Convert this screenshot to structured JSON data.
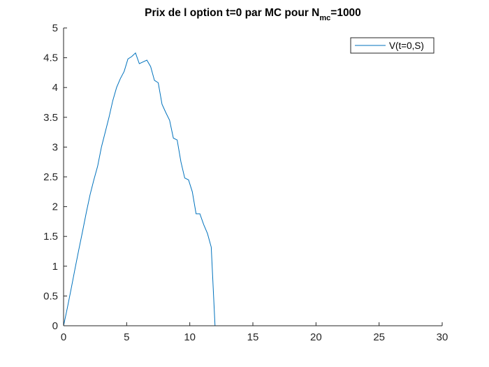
{
  "chart_data": {
    "type": "line",
    "title": {
      "main": "Prix de l option t=0 par MC pour N",
      "subscript": "mc",
      "suffix": "=1000"
    },
    "xlabel": "",
    "ylabel": "",
    "xlim": [
      0,
      30
    ],
    "ylim": [
      0,
      5
    ],
    "xticks": [
      0,
      5,
      10,
      15,
      20,
      25,
      30
    ],
    "yticks": [
      0,
      0.5,
      1,
      1.5,
      2,
      2.5,
      3,
      3.5,
      4,
      4.5,
      5
    ],
    "xtick_labels": [
      "0",
      "5",
      "10",
      "15",
      "20",
      "25",
      "30"
    ],
    "ytick_labels": [
      "0",
      "0.5",
      "1",
      "1.5",
      "2",
      "2.5",
      "3",
      "3.5",
      "4",
      "4.5",
      "5"
    ],
    "grid": false,
    "legend_position": "top-right",
    "series": [
      {
        "name": "V(t=0,S)",
        "color": "#0072bd",
        "x": [
          0,
          0.3,
          0.6,
          0.9,
          1.2,
          1.5,
          1.8,
          2.1,
          2.4,
          2.7,
          3.0,
          3.3,
          3.6,
          3.9,
          4.2,
          4.5,
          4.8,
          5.1,
          5.4,
          5.7,
          6.0,
          6.3,
          6.6,
          6.9,
          7.2,
          7.5,
          7.8,
          8.1,
          8.4,
          8.7,
          9.0,
          9.3,
          9.6,
          9.9,
          10.2,
          10.5,
          10.8,
          11.1,
          11.4,
          11.7,
          12.0,
          12.3,
          15,
          20,
          25,
          30
        ],
        "y": [
          0,
          0.3,
          0.62,
          0.95,
          1.27,
          1.58,
          1.9,
          2.2,
          2.45,
          2.68,
          3.0,
          3.25,
          3.5,
          3.78,
          4.0,
          4.15,
          4.27,
          4.48,
          4.52,
          4.58,
          4.4,
          4.43,
          4.46,
          4.35,
          4.12,
          4.08,
          3.72,
          3.58,
          3.45,
          3.15,
          3.12,
          2.75,
          2.48,
          2.45,
          2.25,
          1.88,
          1.88,
          1.7,
          1.55,
          1.32,
          0.0,
          0.0,
          0.0,
          0.0,
          0.0,
          0.0
        ]
      }
    ]
  }
}
